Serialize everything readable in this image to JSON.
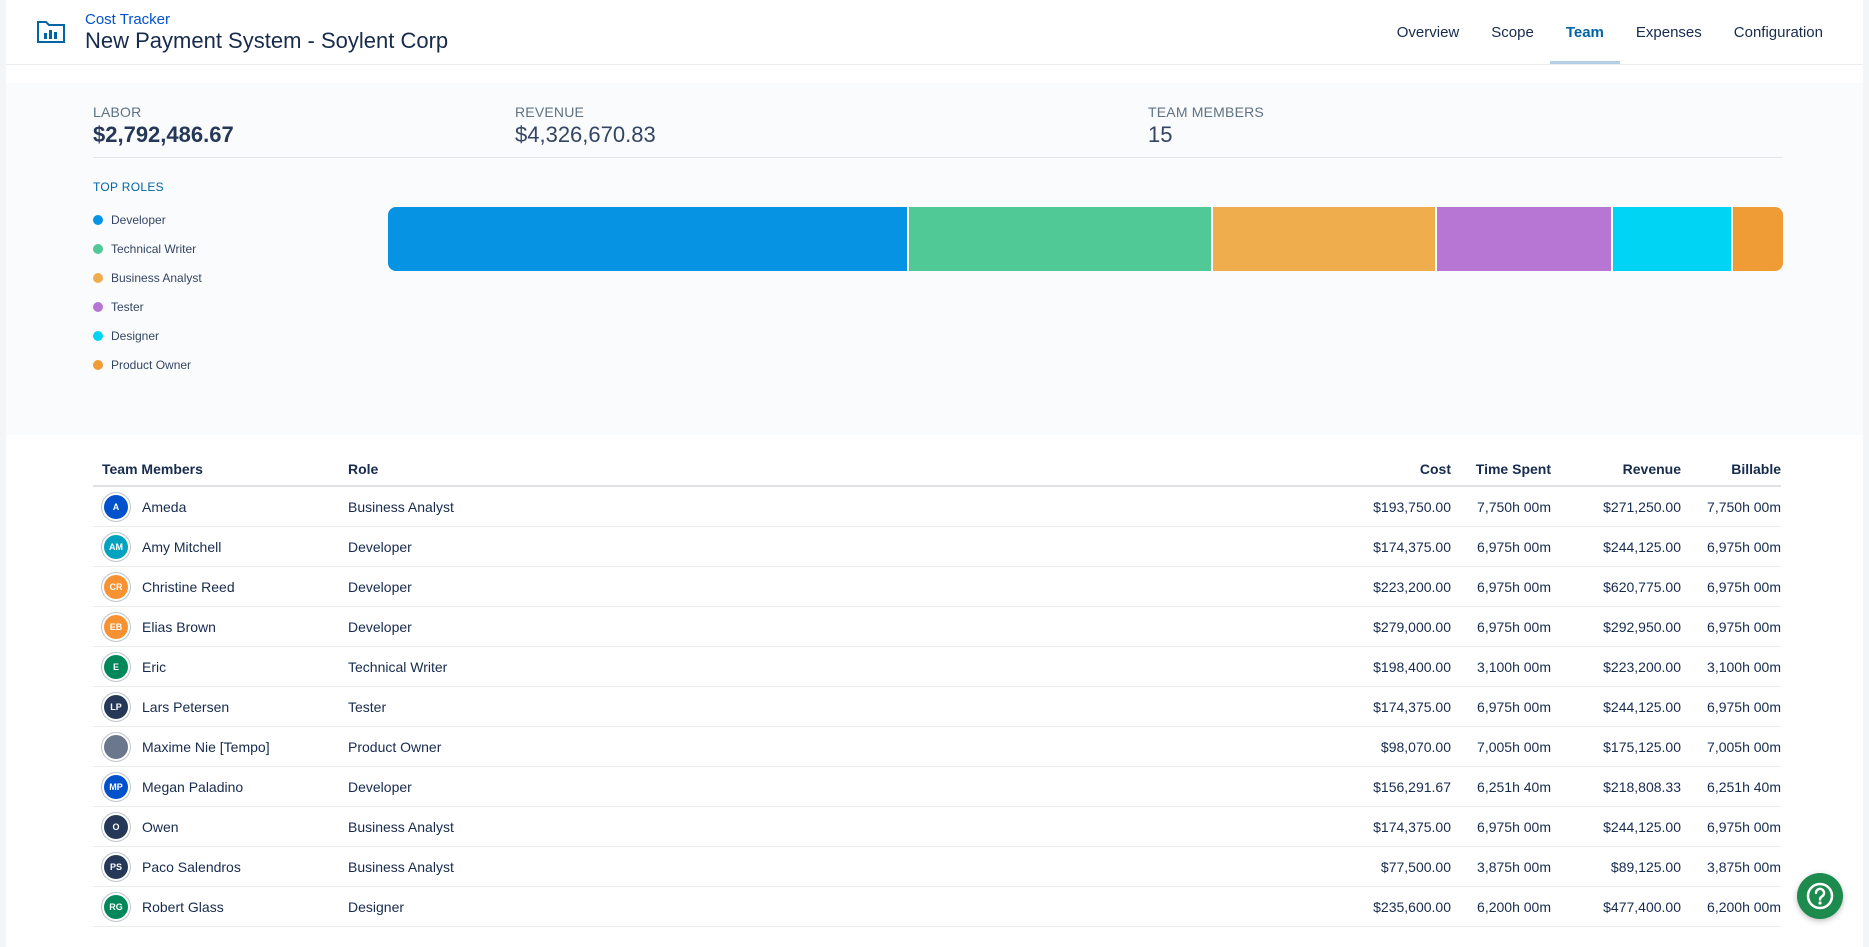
{
  "header": {
    "app_name": "Cost Tracker",
    "project_title": "New Payment System - Soylent Corp",
    "tabs": [
      {
        "label": "Overview",
        "active": false
      },
      {
        "label": "Scope",
        "active": false
      },
      {
        "label": "Team",
        "active": true
      },
      {
        "label": "Expenses",
        "active": false
      },
      {
        "label": "Configuration",
        "active": false
      }
    ]
  },
  "summary": {
    "labor": {
      "label": "LABOR",
      "value": "$2,792,486.67"
    },
    "revenue": {
      "label": "REVENUE",
      "value": "$4,326,670.83"
    },
    "team_members": {
      "label": "TEAM MEMBERS",
      "value": "15"
    }
  },
  "top_roles": {
    "title": "TOP ROLES",
    "roles": [
      {
        "name": "Developer",
        "color": "#0693e3",
        "share": 0.375
      },
      {
        "name": "Technical Writer",
        "color": "#50c996",
        "share": 0.218
      },
      {
        "name": "Business Analyst",
        "color": "#f0ad4e",
        "share": 0.16
      },
      {
        "name": "Tester",
        "color": "#b776d3",
        "share": 0.126
      },
      {
        "name": "Designer",
        "color": "#00d4f5",
        "share": 0.085
      },
      {
        "name": "Product Owner",
        "color": "#ef9c36",
        "share": 0.036
      }
    ]
  },
  "table": {
    "headers": {
      "member": "Team Members",
      "role": "Role",
      "cost": "Cost",
      "time_spent": "Time Spent",
      "revenue": "Revenue",
      "billable": "Billable"
    },
    "rows": [
      {
        "initials": "A",
        "avatar_color": "#0052cc",
        "name": "Ameda",
        "role": "Business Analyst",
        "cost": "$193,750.00",
        "time": "7,750h 00m",
        "revenue": "$271,250.00",
        "billable": "7,750h 00m"
      },
      {
        "initials": "AM",
        "avatar_color": "#00a3bf",
        "name": "Amy Mitchell",
        "role": "Developer",
        "cost": "$174,375.00",
        "time": "6,975h 00m",
        "revenue": "$244,125.00",
        "billable": "6,975h 00m"
      },
      {
        "initials": "CR",
        "avatar_color": "#f79232",
        "name": "Christine Reed",
        "role": "Developer",
        "cost": "$223,200.00",
        "time": "6,975h 00m",
        "revenue": "$620,775.00",
        "billable": "6,975h 00m"
      },
      {
        "initials": "EB",
        "avatar_color": "#f79232",
        "name": "Elias Brown",
        "role": "Developer",
        "cost": "$279,000.00",
        "time": "6,975h 00m",
        "revenue": "$292,950.00",
        "billable": "6,975h 00m"
      },
      {
        "initials": "E",
        "avatar_color": "#00875a",
        "name": "Eric",
        "role": "Technical Writer",
        "cost": "$198,400.00",
        "time": "3,100h 00m",
        "revenue": "$223,200.00",
        "billable": "3,100h 00m"
      },
      {
        "initials": "LP",
        "avatar_color": "#253858",
        "name": "Lars Petersen",
        "role": "Tester",
        "cost": "$174,375.00",
        "time": "6,975h 00m",
        "revenue": "$244,125.00",
        "billable": "6,975h 00m"
      },
      {
        "initials": "",
        "avatar_color": "#6b778c",
        "name": "Maxime Nie [Tempo]",
        "role": "Product Owner",
        "cost": "$98,070.00",
        "time": "7,005h 00m",
        "revenue": "$175,125.00",
        "billable": "7,005h 00m"
      },
      {
        "initials": "MP",
        "avatar_color": "#0052cc",
        "name": "Megan Paladino",
        "role": "Developer",
        "cost": "$156,291.67",
        "time": "6,251h 40m",
        "revenue": "$218,808.33",
        "billable": "6,251h 40m"
      },
      {
        "initials": "O",
        "avatar_color": "#253858",
        "name": "Owen",
        "role": "Business Analyst",
        "cost": "$174,375.00",
        "time": "6,975h 00m",
        "revenue": "$244,125.00",
        "billable": "6,975h 00m"
      },
      {
        "initials": "PS",
        "avatar_color": "#253858",
        "name": "Paco Salendros",
        "role": "Business Analyst",
        "cost": "$77,500.00",
        "time": "3,875h 00m",
        "revenue": "$89,125.00",
        "billable": "3,875h 00m"
      },
      {
        "initials": "RG",
        "avatar_color": "#00875a",
        "name": "Robert Glass",
        "role": "Designer",
        "cost": "$235,600.00",
        "time": "6,200h 00m",
        "revenue": "$477,400.00",
        "billable": "6,200h 00m"
      }
    ]
  },
  "icons": {
    "app": "bar-chart-folder-icon",
    "help": "help-question-icon"
  }
}
